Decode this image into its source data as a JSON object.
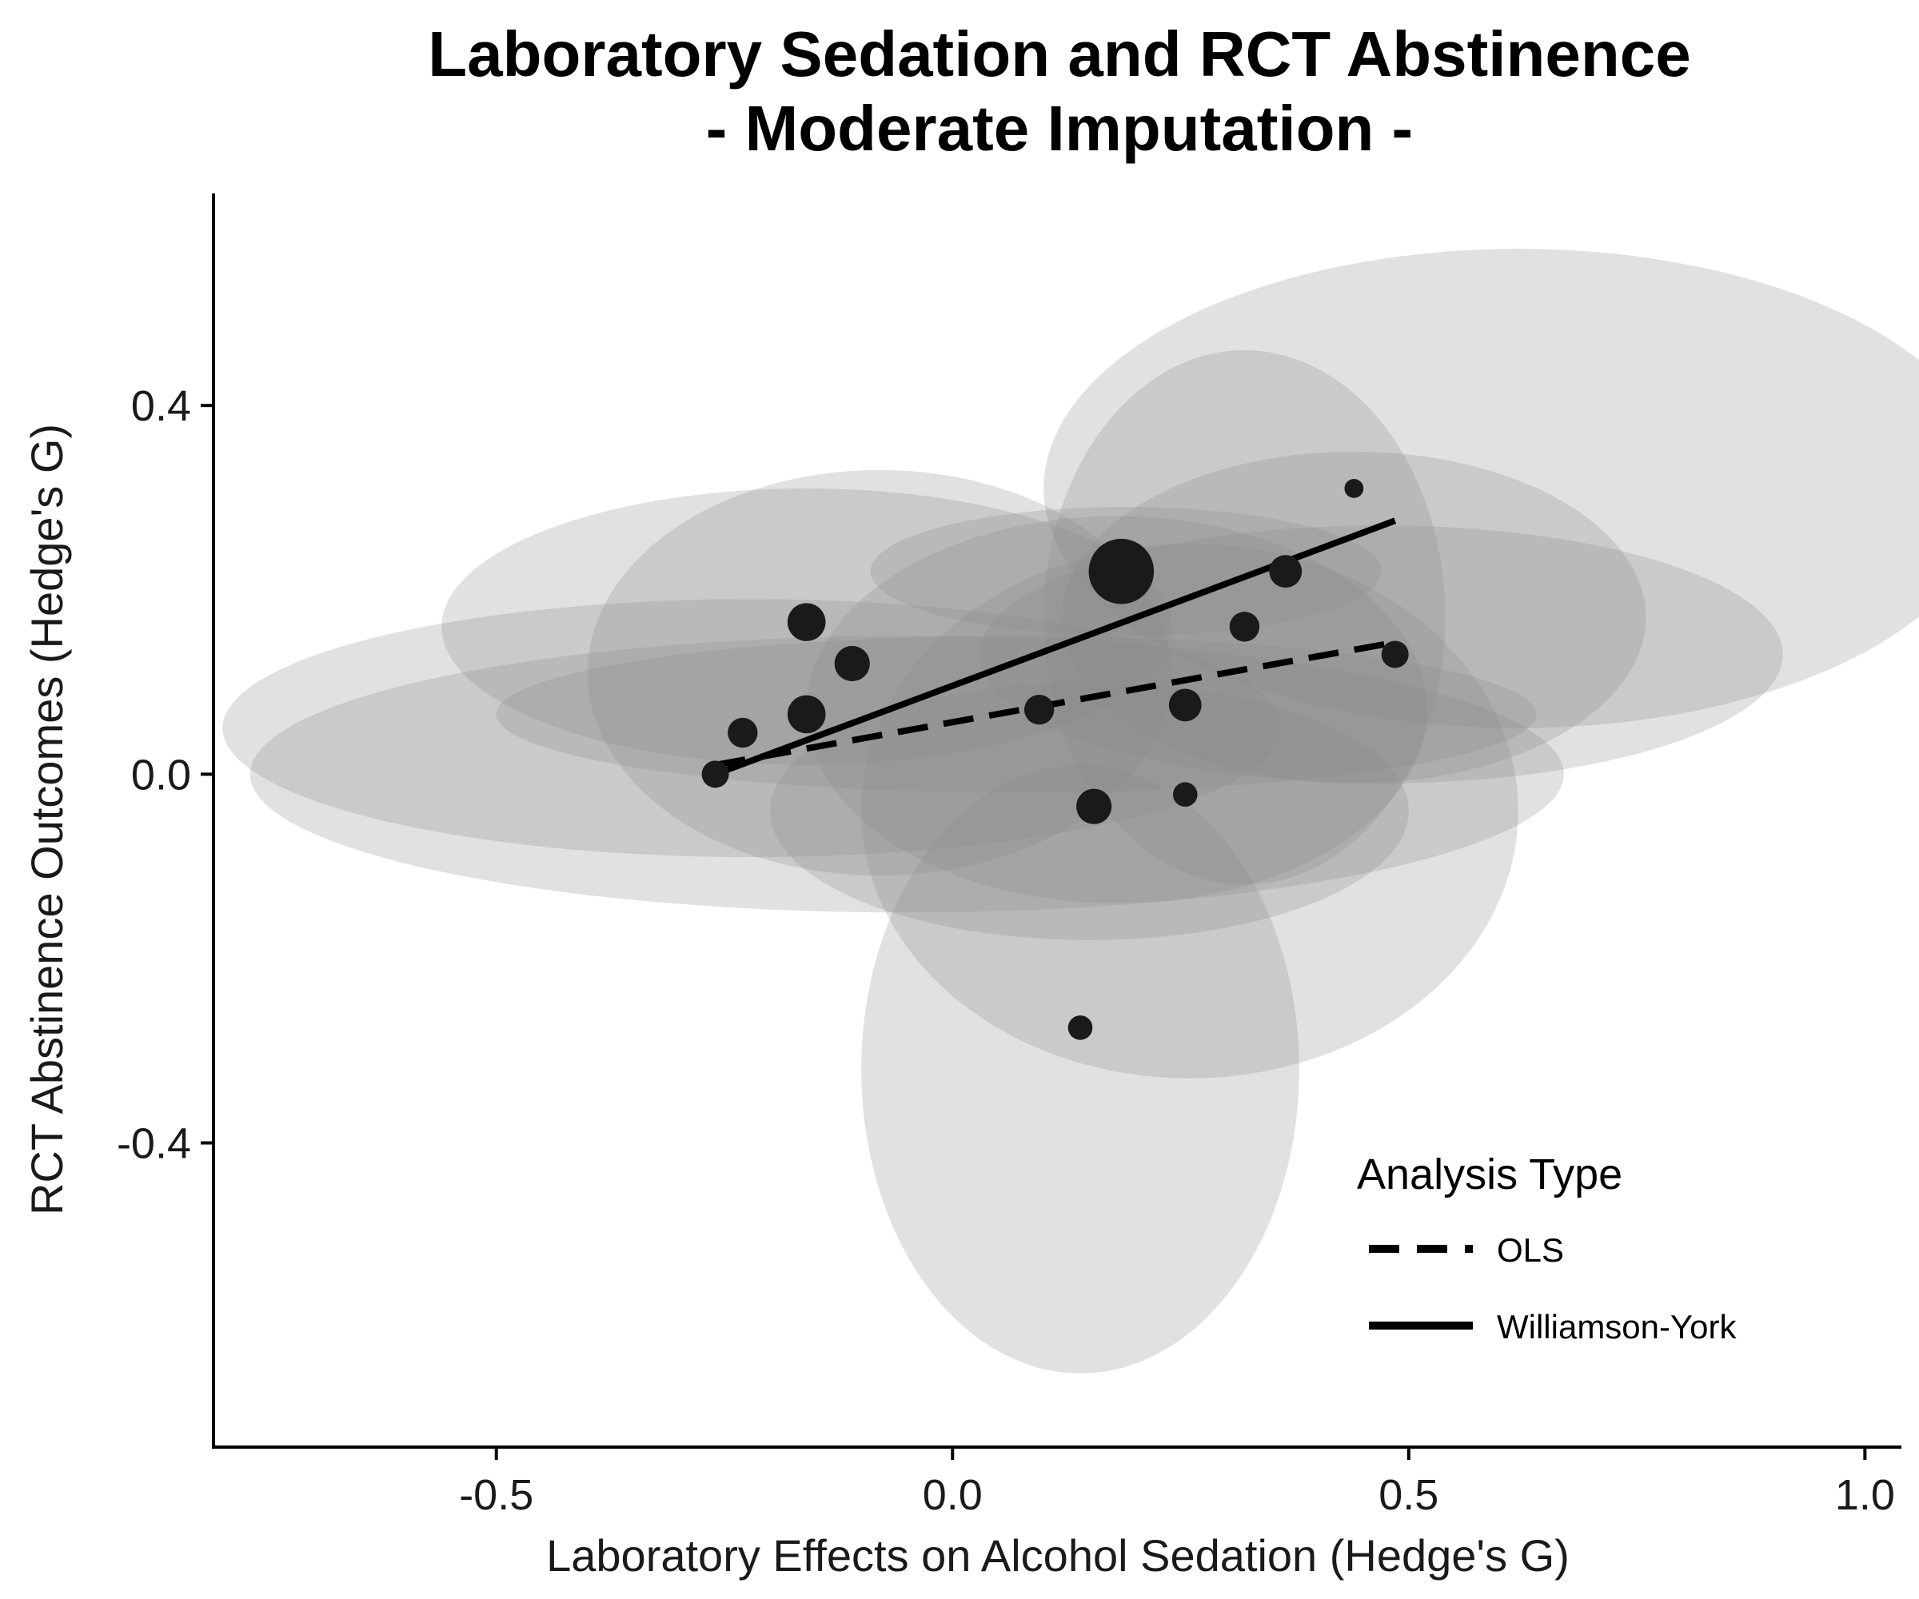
{
  "chart_data": {
    "type": "scatter",
    "title": [
      "Laboratory Sedation and RCT Abstinence",
      "- Moderate Imputation -"
    ],
    "xlabel": "Laboratory Effects on Alcohol Sedation (Hedge's G)",
    "ylabel": "RCT Abstinence Outcomes (Hedge's G)",
    "xlim": [
      -0.81,
      1.04
    ],
    "ylim": [
      -0.73,
      0.63
    ],
    "x_ticks": [
      -0.5,
      0.0,
      0.5,
      1.0
    ],
    "x_tick_labels": [
      "-0.5",
      "0.0",
      "0.5",
      "1.0"
    ],
    "y_ticks": [
      -0.4,
      0.0,
      0.4
    ],
    "y_tick_labels": [
      "-0.4",
      "0.0",
      "0.4"
    ],
    "grid": false,
    "ellipse_color": "#8c8c8c",
    "point_color": "#1a1a1a",
    "ellipses": [
      {
        "cx": -0.05,
        "cy": 0.0,
        "rx": 0.72,
        "ry": 0.15
      },
      {
        "cx": -0.22,
        "cy": 0.05,
        "rx": 0.58,
        "ry": 0.14
      },
      {
        "cx": 0.07,
        "cy": 0.065,
        "rx": 0.57,
        "ry": 0.085
      },
      {
        "cx": -0.16,
        "cy": 0.16,
        "rx": 0.4,
        "ry": 0.15
      },
      {
        "cx": -0.08,
        "cy": 0.11,
        "rx": 0.32,
        "ry": 0.22
      },
      {
        "cx": 0.18,
        "cy": 0.07,
        "rx": 0.34,
        "ry": 0.21
      },
      {
        "cx": 0.26,
        "cy": -0.04,
        "rx": 0.36,
        "ry": 0.29
      },
      {
        "cx": 0.15,
        "cy": -0.04,
        "rx": 0.35,
        "ry": 0.14
      },
      {
        "cx": 0.19,
        "cy": 0.22,
        "rx": 0.28,
        "ry": 0.07
      },
      {
        "cx": 0.44,
        "cy": 0.17,
        "rx": 0.32,
        "ry": 0.18
      },
      {
        "cx": 0.47,
        "cy": 0.13,
        "rx": 0.44,
        "ry": 0.14
      },
      {
        "cx": 0.62,
        "cy": 0.31,
        "rx": 0.52,
        "ry": 0.26
      },
      {
        "cx": 0.32,
        "cy": 0.17,
        "rx": 0.22,
        "ry": 0.29
      },
      {
        "cx": 0.14,
        "cy": -0.32,
        "rx": 0.24,
        "ry": 0.33
      }
    ],
    "points": [
      {
        "x": -0.26,
        "y": 0.0,
        "size": 1.0
      },
      {
        "x": -0.23,
        "y": 0.045,
        "size": 1.1
      },
      {
        "x": -0.16,
        "y": 0.065,
        "size": 1.4
      },
      {
        "x": -0.16,
        "y": 0.165,
        "size": 1.4
      },
      {
        "x": -0.11,
        "y": 0.12,
        "size": 1.3
      },
      {
        "x": 0.095,
        "y": 0.07,
        "size": 1.1
      },
      {
        "x": 0.155,
        "y": -0.035,
        "size": 1.3
      },
      {
        "x": 0.185,
        "y": 0.22,
        "size": 2.4
      },
      {
        "x": 0.255,
        "y": 0.075,
        "size": 1.2
      },
      {
        "x": 0.255,
        "y": -0.022,
        "size": 0.9
      },
      {
        "x": 0.32,
        "y": 0.16,
        "size": 1.1
      },
      {
        "x": 0.365,
        "y": 0.22,
        "size": 1.2
      },
      {
        "x": 0.44,
        "y": 0.31,
        "size": 0.7
      },
      {
        "x": 0.485,
        "y": 0.13,
        "size": 1.0
      },
      {
        "x": 0.14,
        "y": -0.275,
        "size": 0.9
      }
    ],
    "series": [
      {
        "name": "OLS",
        "x": [
          -0.26,
          0.485
        ],
        "y": [
          0.01,
          0.143
        ]
      },
      {
        "name": "Williamson-York",
        "x": [
          -0.26,
          0.485
        ],
        "y": [
          0.0,
          0.275
        ]
      }
    ],
    "legend": {
      "title": "Analysis Type",
      "position": "bottom-right",
      "items": [
        "OLS",
        "Williamson-York"
      ]
    }
  }
}
